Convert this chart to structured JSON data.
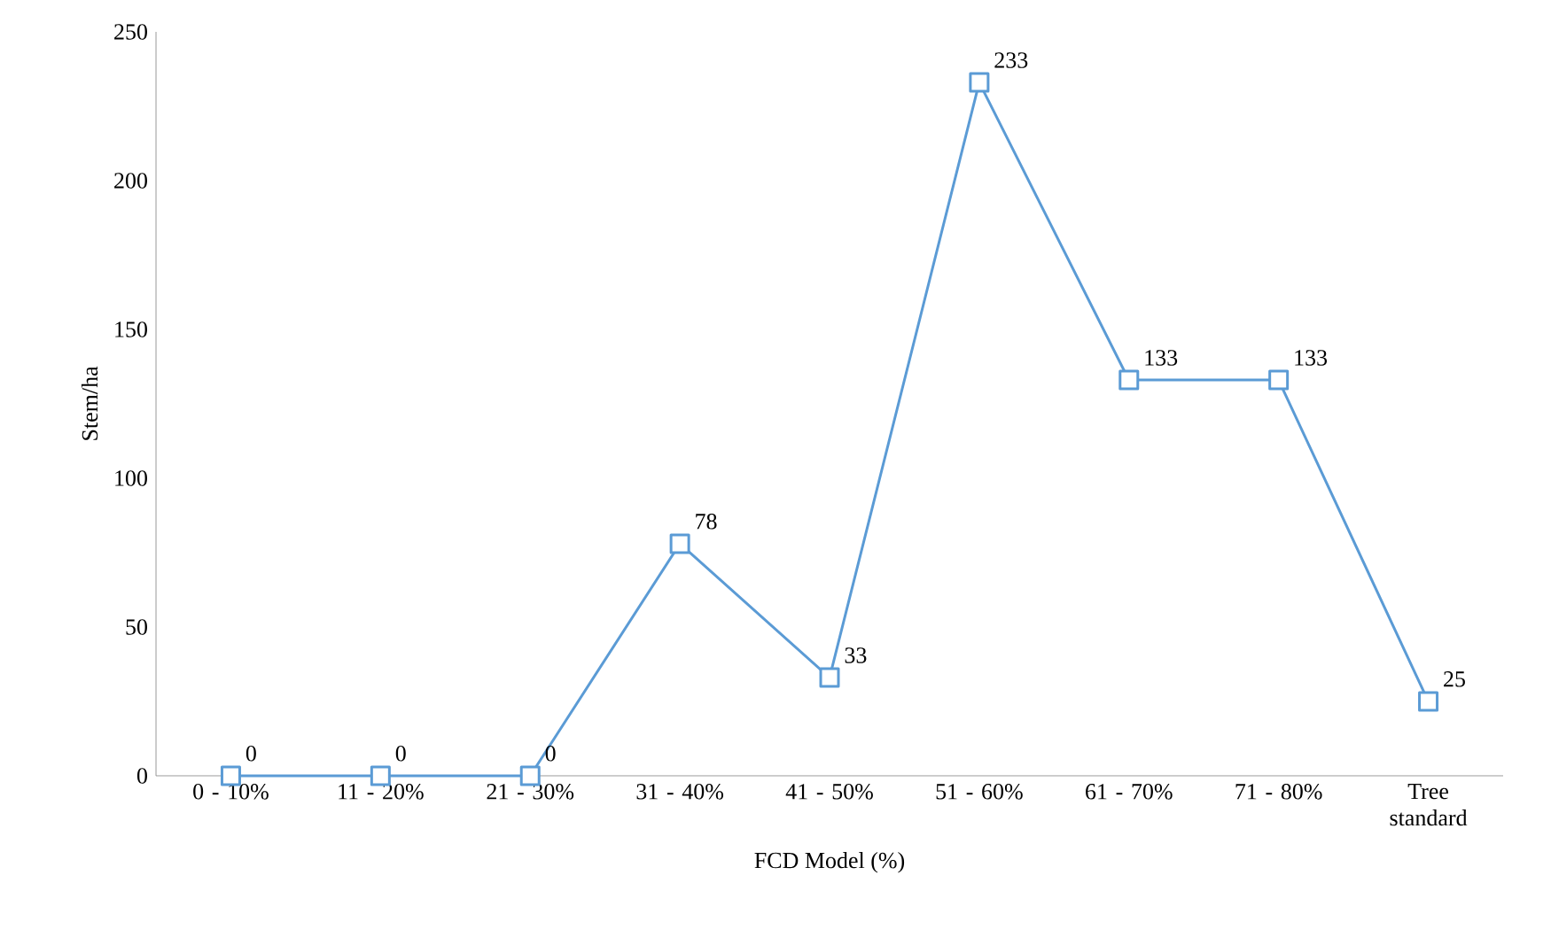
{
  "chart_data": {
    "type": "line",
    "xlabel": "FCD Model (%)",
    "ylabel": "Stem/ha",
    "categories": [
      "0 - 10%",
      "11 - 20%",
      "21 - 30%",
      "31 - 40%",
      "41 - 50%",
      "51 - 60%",
      "61 - 70%",
      "71 - 80%",
      "Tree standard"
    ],
    "values": [
      0,
      0,
      0,
      78,
      33,
      233,
      133,
      133,
      25
    ],
    "color": "#5b9bd5",
    "marker": "square",
    "line_style": "solid",
    "ylim": [
      0,
      250
    ],
    "yticks": [
      0,
      50,
      100,
      150,
      200,
      250
    ],
    "grid": false,
    "data_labels": true
  }
}
